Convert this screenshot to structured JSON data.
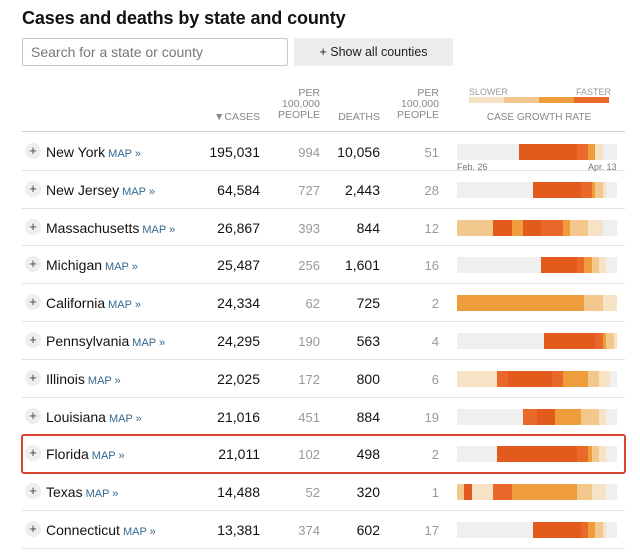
{
  "title": "Cases and deaths by state and county",
  "search": {
    "placeholder": "Search for a state or county"
  },
  "show_all_label": "+ Show all counties",
  "columns": {
    "cases": "▼CASES",
    "per100k_cases": "PER 100,000 PEOPLE",
    "deaths": "DEATHS",
    "per100k_deaths": "PER 100,000 PEOPLE",
    "growth": "CASE GROWTH RATE"
  },
  "legend": {
    "slower": "SLOWER",
    "faster": "FASTER",
    "colors": [
      "#f6e2c4",
      "#f2c88c",
      "#ee9c3c",
      "#e8692a"
    ]
  },
  "date_range": {
    "start": "Feb. 26",
    "end": "Apr. 13"
  },
  "map_label": "MAP »",
  "growth_palette": [
    "#efefef",
    "#f6e2c4",
    "#f2c88c",
    "#ee9c3c",
    "#e8692a",
    "#e25a1c"
  ],
  "rows": [
    {
      "state": "New York",
      "cases": "195,031",
      "per100k_cases": "994",
      "deaths": "10,056",
      "per100k_deaths": "51",
      "highlight": false,
      "growth": "00000000000000000555555555555555544433110000"
    },
    {
      "state": "New Jersey",
      "cases": "64,584",
      "per100k_cases": "727",
      "deaths": "2,443",
      "per100k_deaths": "28",
      "highlight": false,
      "growth": "00000000000000000000055555555555554443221000"
    },
    {
      "state": "Massachusetts",
      "cases": "26,867",
      "per100k_cases": "393",
      "deaths": "844",
      "per100k_deaths": "12",
      "highlight": false,
      "growth": "22222222225555533355555444444332222211110000"
    },
    {
      "state": "Michigan",
      "cases": "25,487",
      "per100k_cases": "256",
      "deaths": "1,601",
      "per100k_deaths": "16",
      "highlight": false,
      "growth": "00000000000000000000000555555555544332211000"
    },
    {
      "state": "California",
      "cases": "24,334",
      "per100k_cases": "62",
      "deaths": "725",
      "per100k_deaths": "2",
      "highlight": false,
      "growth": "33333333333333333333333333333333333222221111"
    },
    {
      "state": "Pennsylvania",
      "cases": "24,295",
      "per100k_cases": "190",
      "deaths": "563",
      "per100k_deaths": "4",
      "highlight": false,
      "growth": "00000000000000000000000055555555555555443221"
    },
    {
      "state": "Illinois",
      "cases": "22,025",
      "per100k_cases": "172",
      "deaths": "800",
      "per100k_deaths": "6",
      "highlight": false,
      "growth": "11111111111444555555555555444333333322211100"
    },
    {
      "state": "Louisiana",
      "cases": "21,016",
      "per100k_cases": "451",
      "deaths": "884",
      "per100k_deaths": "19",
      "highlight": false,
      "growth": "00000000000000000044445555533333332222211000"
    },
    {
      "state": "Florida",
      "cases": "21,011",
      "per100k_cases": "102",
      "deaths": "498",
      "per100k_deaths": "2",
      "highlight": true,
      "growth": "00000000000555555555555555555555544432211000"
    },
    {
      "state": "Texas",
      "cases": "14,488",
      "per100k_cases": "52",
      "deaths": "320",
      "per100k_deaths": "1",
      "highlight": false,
      "growth": "22551111114444433333333333333333322221111000"
    },
    {
      "state": "Connecticut",
      "cases": "13,381",
      "per100k_cases": "374",
      "deaths": "602",
      "per100k_deaths": "17",
      "highlight": false,
      "growth": "00000000000000000000055555555555554433221000"
    }
  ]
}
